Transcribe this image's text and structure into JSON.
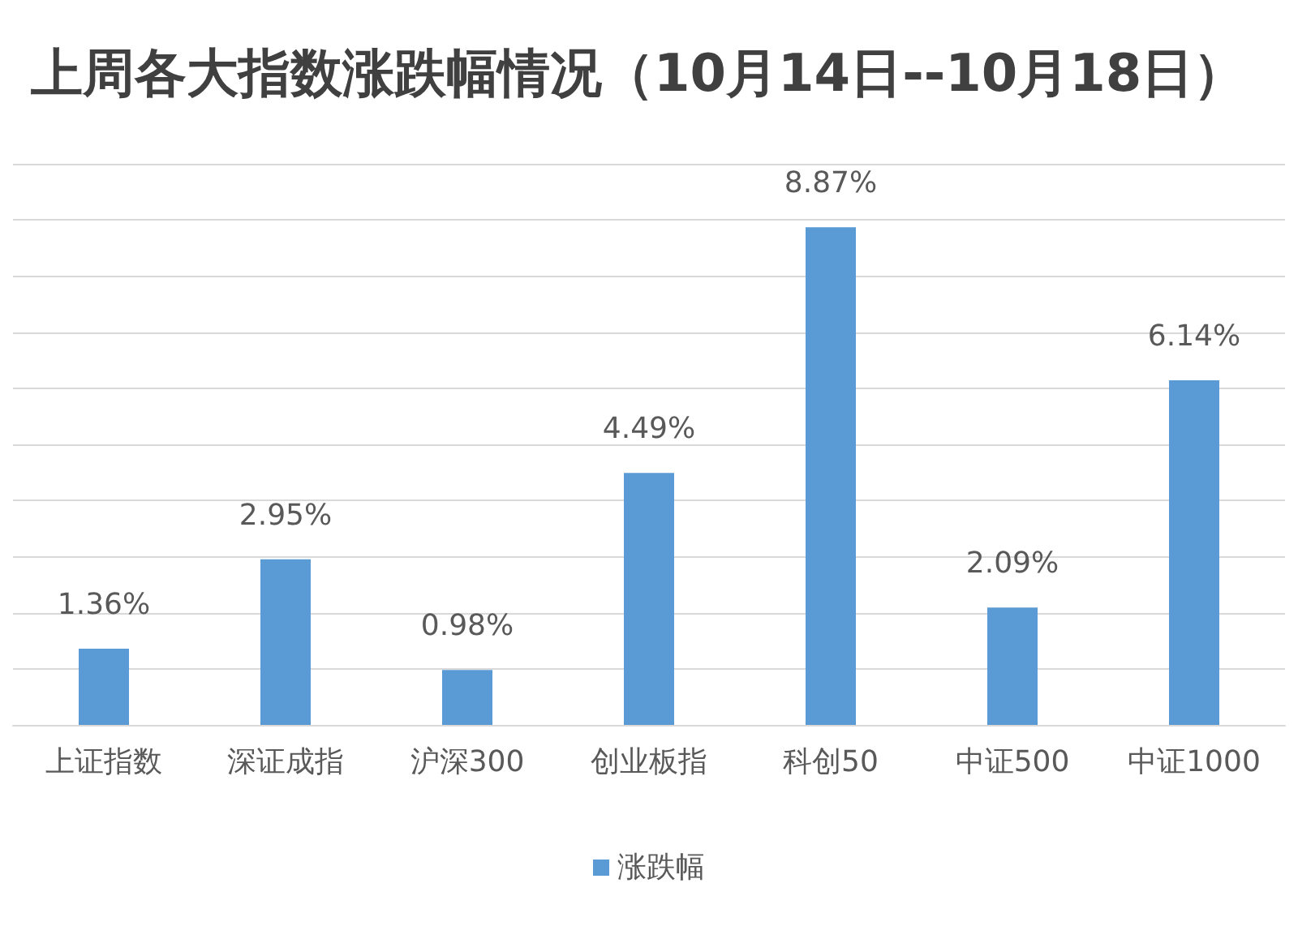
{
  "chart_data": {
    "type": "bar",
    "title": "上周各大指数涨跌幅情况（10月14日--10月18日）",
    "categories": [
      "上证指数",
      "深证成指",
      "沪深300",
      "创业板指",
      "科创50",
      "中证500",
      "中证1000"
    ],
    "series": [
      {
        "name": "涨跌幅",
        "color": "#5b9bd5",
        "values": [
          1.36,
          2.95,
          0.98,
          4.49,
          8.87,
          2.09,
          6.14
        ],
        "value_labels": [
          "1.36%",
          "2.95%",
          "0.98%",
          "4.49%",
          "8.87%",
          "2.09%",
          "6.14%"
        ]
      }
    ],
    "ylim": [
      0,
      10
    ],
    "yticks": [
      {
        "value": 0,
        "label": null
      },
      {
        "value": 1,
        "label": null
      },
      {
        "value": 2,
        "label": null
      },
      {
        "value": 3,
        "label": null
      },
      {
        "value": 4,
        "label": null
      },
      {
        "value": 5,
        "label": null
      },
      {
        "value": 6,
        "label": null
      },
      {
        "value": 7,
        "label": null
      },
      {
        "value": 8,
        "label": null
      },
      {
        "value": 9,
        "label": null
      },
      {
        "value": 10,
        "label": null
      }
    ],
    "tick_labels": "x",
    "grid": "y",
    "legend": "bottom"
  }
}
